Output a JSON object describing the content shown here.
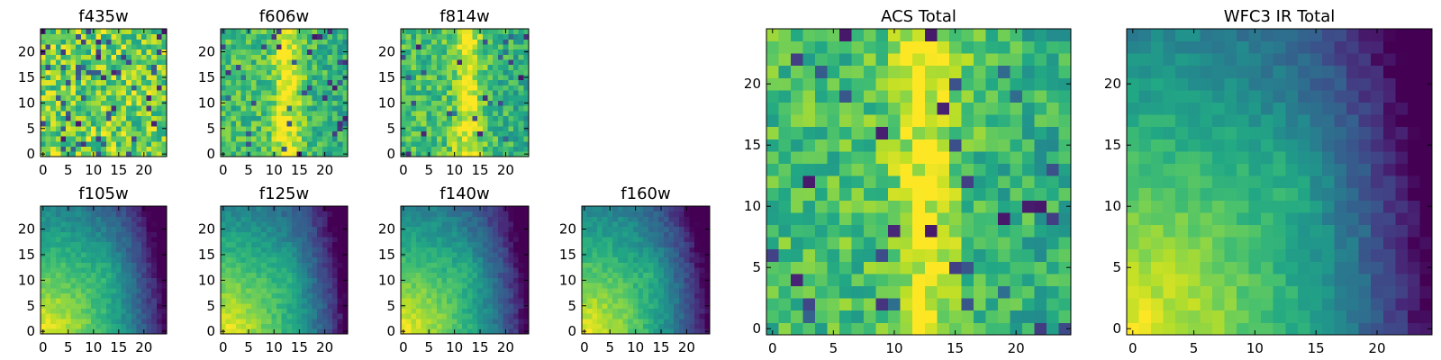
{
  "figure": {
    "background": "#ffffff",
    "colormap": "viridis"
  },
  "chart_data": [
    {
      "type": "heatmap",
      "id": "f435w",
      "title": "f435w",
      "xticks": [
        0,
        5,
        10,
        15,
        20
      ],
      "yticks": [
        0,
        5,
        10,
        15,
        20
      ],
      "xlim": [
        -0.5,
        24.5
      ],
      "ylim": [
        -0.5,
        24.5
      ],
      "grid_size": [
        25,
        25
      ],
      "pattern": "noise",
      "value_range": [
        0.0,
        1.0
      ]
    },
    {
      "type": "heatmap",
      "id": "f606w",
      "title": "f606w",
      "xticks": [
        0,
        5,
        10,
        15,
        20
      ],
      "yticks": [
        0,
        5,
        10,
        15,
        20
      ],
      "xlim": [
        -0.5,
        24.5
      ],
      "ylim": [
        -0.5,
        24.5
      ],
      "grid_size": [
        25,
        25
      ],
      "pattern": "central-band",
      "value_range": [
        0.0,
        1.0
      ]
    },
    {
      "type": "heatmap",
      "id": "f814w",
      "title": "f814w",
      "xticks": [
        0,
        5,
        10,
        15,
        20
      ],
      "yticks": [
        0,
        5,
        10,
        15,
        20
      ],
      "xlim": [
        -0.5,
        24.5
      ],
      "ylim": [
        -0.5,
        24.5
      ],
      "grid_size": [
        25,
        25
      ],
      "pattern": "central-band",
      "value_range": [
        0.0,
        1.0
      ]
    },
    {
      "type": "heatmap",
      "id": "f105w",
      "title": "f105w",
      "xticks": [
        0,
        5,
        10,
        15,
        20
      ],
      "yticks": [
        0,
        5,
        10,
        15,
        20
      ],
      "xlim": [
        -0.5,
        24.5
      ],
      "ylim": [
        -0.5,
        24.5
      ],
      "grid_size": [
        25,
        25
      ],
      "pattern": "corner-gradient",
      "value_range": [
        0.0,
        1.0
      ]
    },
    {
      "type": "heatmap",
      "id": "f125w",
      "title": "f125w",
      "xticks": [
        0,
        5,
        10,
        15,
        20
      ],
      "yticks": [
        0,
        5,
        10,
        15,
        20
      ],
      "xlim": [
        -0.5,
        24.5
      ],
      "ylim": [
        -0.5,
        24.5
      ],
      "grid_size": [
        25,
        25
      ],
      "pattern": "corner-gradient",
      "value_range": [
        0.0,
        1.0
      ]
    },
    {
      "type": "heatmap",
      "id": "f140w",
      "title": "f140w",
      "xticks": [
        0,
        5,
        10,
        15,
        20
      ],
      "yticks": [
        0,
        5,
        10,
        15,
        20
      ],
      "xlim": [
        -0.5,
        24.5
      ],
      "ylim": [
        -0.5,
        24.5
      ],
      "grid_size": [
        25,
        25
      ],
      "pattern": "corner-gradient",
      "value_range": [
        0.0,
        1.0
      ]
    },
    {
      "type": "heatmap",
      "id": "f160w",
      "title": "f160w",
      "xticks": [
        0,
        5,
        10,
        15,
        20
      ],
      "yticks": [
        0,
        5,
        10,
        15,
        20
      ],
      "xlim": [
        -0.5,
        24.5
      ],
      "ylim": [
        -0.5,
        24.5
      ],
      "grid_size": [
        25,
        25
      ],
      "pattern": "corner-gradient",
      "value_range": [
        0.0,
        1.0
      ]
    },
    {
      "type": "heatmap",
      "id": "acs-total",
      "title": "ACS Total",
      "xticks": [
        0,
        5,
        10,
        15,
        20
      ],
      "yticks": [
        0,
        5,
        10,
        15,
        20
      ],
      "xlim": [
        -0.5,
        24.5
      ],
      "ylim": [
        -0.5,
        24.5
      ],
      "grid_size": [
        25,
        25
      ],
      "pattern": "central-band",
      "value_range": [
        0.0,
        1.0
      ]
    },
    {
      "type": "heatmap",
      "id": "wfc3-ir-total",
      "title": "WFC3 IR Total",
      "xticks": [
        0,
        5,
        10,
        15,
        20
      ],
      "yticks": [
        0,
        5,
        10,
        15,
        20
      ],
      "xlim": [
        -0.5,
        24.5
      ],
      "ylim": [
        -0.5,
        24.5
      ],
      "grid_size": [
        25,
        25
      ],
      "pattern": "corner-gradient",
      "value_range": [
        0.0,
        1.0
      ]
    }
  ]
}
